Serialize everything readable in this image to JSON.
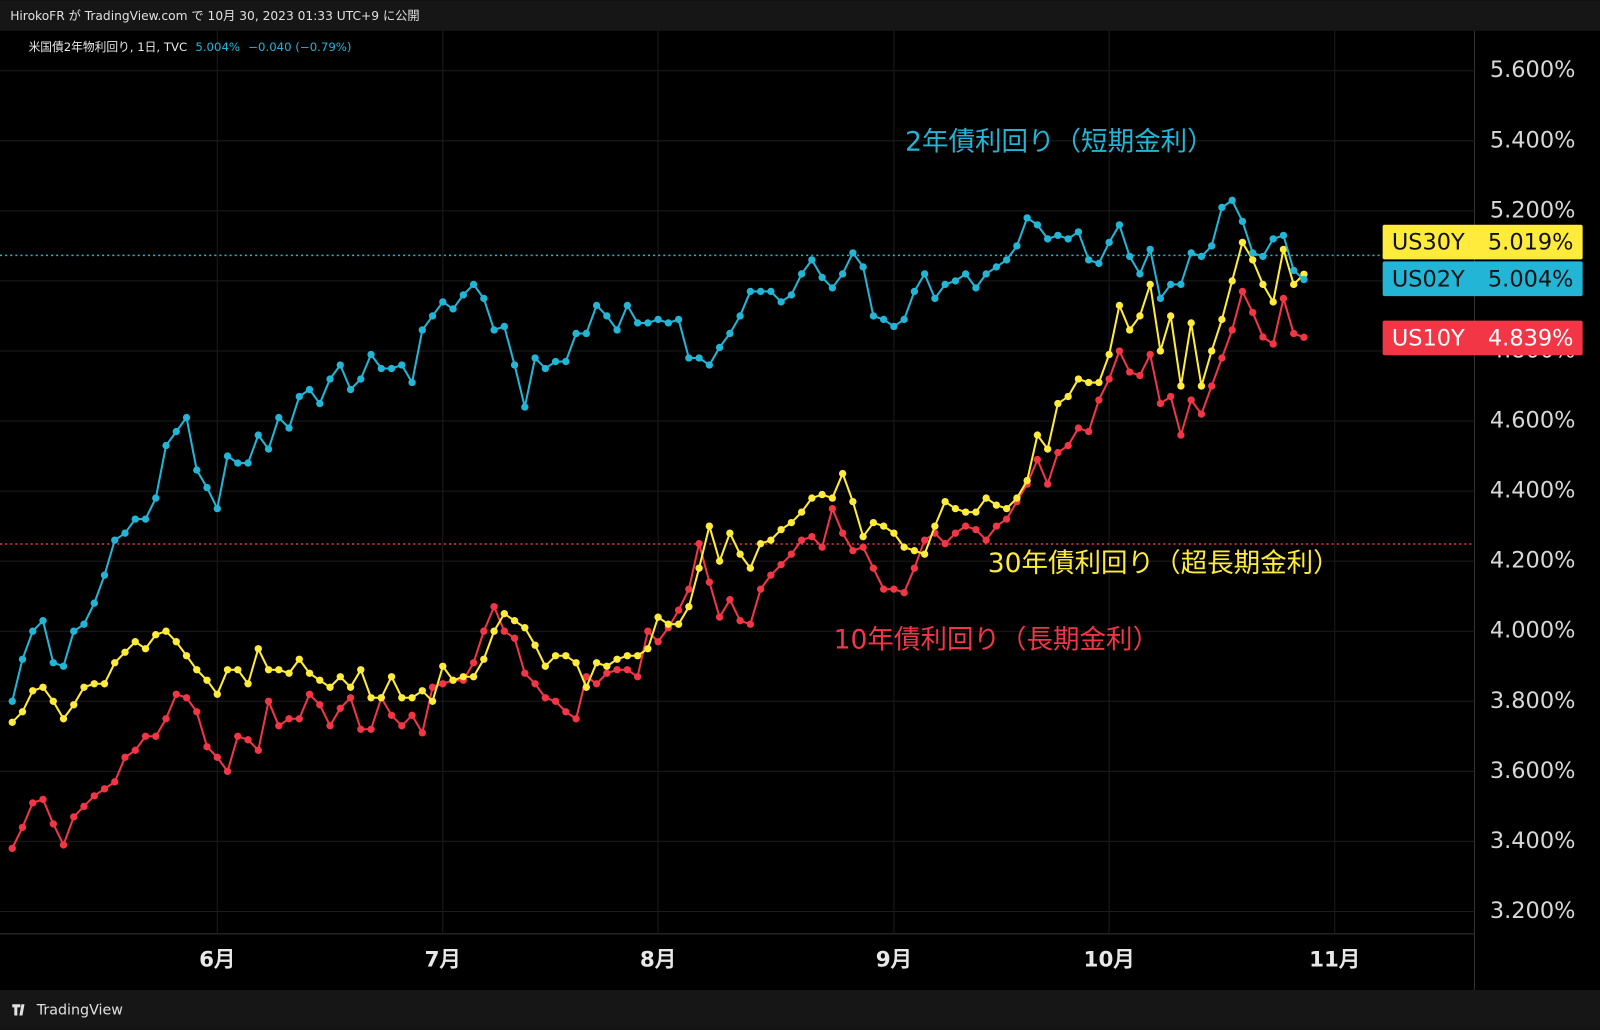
{
  "header": "HirokoFR が TradingView.com で 10月 30, 2023 01:33 UTC+9 に公開",
  "footer": "TradingView",
  "chart_data": {
    "type": "line",
    "legend": {
      "title": "米国債2年物利回り, 1日, TVC",
      "value": "5.004%",
      "change": "−0.040 (−0.79%)"
    },
    "annotations": [
      {
        "text": "2年債利回り（短期金利）",
        "color": "#22b5d6"
      },
      {
        "text": "30年債利回り（超長期金利）",
        "color": "#ffeb3b"
      },
      {
        "text": "10年債利回り（長期金利）",
        "color": "#f23645"
      }
    ],
    "categories": [
      null,
      null,
      null,
      null,
      null,
      null,
      null,
      null,
      null,
      null,
      null,
      null,
      null,
      null,
      null,
      null,
      null,
      null,
      null,
      null,
      "6月",
      null,
      null,
      null,
      null,
      null,
      null,
      null,
      null,
      null,
      null,
      null,
      null,
      null,
      null,
      null,
      null,
      null,
      null,
      null,
      null,
      null,
      "7月",
      null,
      null,
      null,
      null,
      null,
      null,
      null,
      null,
      null,
      null,
      null,
      null,
      null,
      null,
      null,
      null,
      null,
      null,
      null,
      null,
      "8月",
      null,
      null,
      null,
      null,
      null,
      null,
      null,
      null,
      null,
      null,
      null,
      null,
      null,
      null,
      null,
      null,
      null,
      null,
      null,
      null,
      null,
      null,
      "9月",
      null,
      null,
      null,
      null,
      null,
      null,
      null,
      null,
      null,
      null,
      null,
      null,
      null,
      null,
      null,
      null,
      null,
      null,
      null,
      null,
      "10月",
      null,
      null,
      null,
      null,
      null,
      null,
      null,
      null,
      null,
      null,
      null,
      null,
      null,
      null,
      null,
      null,
      null,
      null,
      null,
      null,
      null,
      "11月"
    ],
    "series": [
      {
        "name": "US02Y",
        "color": "#22b5d6",
        "last_label": "5.004%",
        "values": [
          3.8,
          3.92,
          4.0,
          4.03,
          3.91,
          3.9,
          4.0,
          4.02,
          4.08,
          4.16,
          4.26,
          4.28,
          4.32,
          4.32,
          4.38,
          4.53,
          4.57,
          4.61,
          4.46,
          4.41,
          4.35,
          4.5,
          4.48,
          4.48,
          4.56,
          4.52,
          4.61,
          4.58,
          4.67,
          4.69,
          4.65,
          4.72,
          4.76,
          4.69,
          4.72,
          4.79,
          4.75,
          4.75,
          4.76,
          4.71,
          4.86,
          4.9,
          4.94,
          4.92,
          4.96,
          4.99,
          4.95,
          4.86,
          4.87,
          4.76,
          4.64,
          4.78,
          4.75,
          4.77,
          4.77,
          4.85,
          4.85,
          4.93,
          4.9,
          4.86,
          4.93,
          4.88,
          4.88,
          4.89,
          4.88,
          4.89,
          4.78,
          4.78,
          4.76,
          4.81,
          4.85,
          4.9,
          4.97,
          4.97,
          4.97,
          4.94,
          4.96,
          5.02,
          5.06,
          5.01,
          4.98,
          5.02,
          5.08,
          5.04,
          4.9,
          4.89,
          4.87,
          4.89,
          4.97,
          5.02,
          4.95,
          4.99,
          5.0,
          5.02,
          4.98,
          5.02,
          5.04,
          5.06,
          5.1,
          5.18,
          5.16,
          5.12,
          5.13,
          5.12,
          5.14,
          5.06,
          5.05,
          5.11,
          5.16,
          5.07,
          5.02,
          5.09,
          4.95,
          4.99,
          4.99,
          5.08,
          5.07,
          5.1,
          5.21,
          5.23,
          5.17,
          5.08,
          5.07,
          5.12,
          5.13,
          5.03,
          5.004,
          null,
          null,
          null
        ]
      },
      {
        "name": "US30Y",
        "color": "#ffeb3b",
        "last_label": "5.019%",
        "values": [
          3.74,
          3.77,
          3.83,
          3.84,
          3.8,
          3.75,
          3.79,
          3.84,
          3.85,
          3.85,
          3.91,
          3.94,
          3.97,
          3.95,
          3.99,
          4.0,
          3.97,
          3.93,
          3.89,
          3.86,
          3.82,
          3.89,
          3.89,
          3.85,
          3.95,
          3.89,
          3.89,
          3.88,
          3.92,
          3.88,
          3.86,
          3.84,
          3.87,
          3.84,
          3.89,
          3.81,
          3.81,
          3.87,
          3.81,
          3.81,
          3.83,
          3.8,
          3.9,
          3.86,
          3.87,
          3.87,
          3.92,
          4.0,
          4.05,
          4.03,
          4.01,
          3.96,
          3.9,
          3.93,
          3.93,
          3.91,
          3.84,
          3.91,
          3.9,
          3.92,
          3.93,
          3.93,
          3.95,
          4.04,
          4.02,
          4.02,
          4.07,
          4.18,
          4.3,
          4.2,
          4.28,
          4.22,
          4.18,
          4.25,
          4.26,
          4.29,
          4.31,
          4.34,
          4.38,
          4.39,
          4.38,
          4.45,
          4.37,
          4.27,
          4.31,
          4.3,
          4.28,
          4.24,
          4.23,
          4.22,
          4.3,
          4.37,
          4.35,
          4.34,
          4.34,
          4.38,
          4.36,
          4.35,
          4.38,
          4.43,
          4.56,
          4.52,
          4.65,
          4.67,
          4.72,
          4.71,
          4.71,
          4.79,
          4.93,
          4.86,
          4.9,
          4.99,
          4.8,
          4.9,
          4.7,
          4.88,
          4.7,
          4.8,
          4.89,
          5.0,
          5.11,
          5.06,
          4.99,
          4.94,
          5.09,
          4.99,
          5.019,
          null,
          null,
          null
        ]
      },
      {
        "name": "US10Y",
        "color": "#f23645",
        "last_label": "4.839%",
        "values": [
          3.38,
          3.44,
          3.51,
          3.52,
          3.45,
          3.39,
          3.47,
          3.5,
          3.53,
          3.55,
          3.57,
          3.64,
          3.66,
          3.7,
          3.7,
          3.75,
          3.82,
          3.81,
          3.77,
          3.67,
          3.64,
          3.6,
          3.7,
          3.69,
          3.66,
          3.8,
          3.73,
          3.75,
          3.75,
          3.82,
          3.79,
          3.73,
          3.78,
          3.81,
          3.72,
          3.72,
          3.81,
          3.76,
          3.73,
          3.76,
          3.71,
          3.84,
          3.85,
          3.86,
          3.86,
          3.91,
          4.0,
          4.07,
          4.0,
          3.98,
          3.88,
          3.85,
          3.81,
          3.8,
          3.77,
          3.75,
          3.87,
          3.85,
          3.88,
          3.89,
          3.89,
          3.87,
          4.0,
          3.97,
          4.01,
          4.06,
          4.12,
          4.25,
          4.14,
          4.04,
          4.09,
          4.03,
          4.02,
          4.12,
          4.16,
          4.19,
          4.22,
          4.26,
          4.27,
          4.24,
          4.35,
          4.28,
          4.23,
          4.24,
          4.18,
          4.12,
          4.12,
          4.11,
          4.18,
          4.26,
          4.28,
          4.25,
          4.28,
          4.3,
          4.29,
          4.26,
          4.3,
          4.32,
          4.37,
          4.42,
          4.49,
          4.42,
          4.51,
          4.53,
          4.58,
          4.57,
          4.66,
          4.72,
          4.8,
          4.74,
          4.73,
          4.79,
          4.65,
          4.67,
          4.56,
          4.66,
          4.62,
          4.7,
          4.78,
          4.86,
          4.97,
          4.91,
          4.84,
          4.82,
          4.95,
          4.85,
          4.839,
          null,
          null,
          null
        ]
      }
    ],
    "reference_lines": [
      {
        "value": 5.073,
        "color": "#22b5d6"
      },
      {
        "value": 4.249,
        "color": "#f23645"
      }
    ],
    "ylim": [
      3.136,
      5.714
    ],
    "yticks": [
      {
        "value": 3.2,
        "label": "3.200%"
      },
      {
        "value": 3.4,
        "label": "3.400%"
      },
      {
        "value": 3.6,
        "label": "3.600%"
      },
      {
        "value": 3.8,
        "label": "3.800%"
      },
      {
        "value": 4.0,
        "label": "4.000%"
      },
      {
        "value": 4.2,
        "label": "4.200%"
      },
      {
        "value": 4.4,
        "label": "4.400%"
      },
      {
        "value": 4.6,
        "label": "4.600%"
      },
      {
        "value": 4.8,
        "label": "4.800%"
      },
      {
        "value": 5.0,
        "label": "5.000%"
      },
      {
        "value": 5.2,
        "label": "5.200%"
      },
      {
        "value": 5.4,
        "label": "5.400%"
      },
      {
        "value": 5.6,
        "label": "5.600%"
      }
    ],
    "grid": true
  }
}
